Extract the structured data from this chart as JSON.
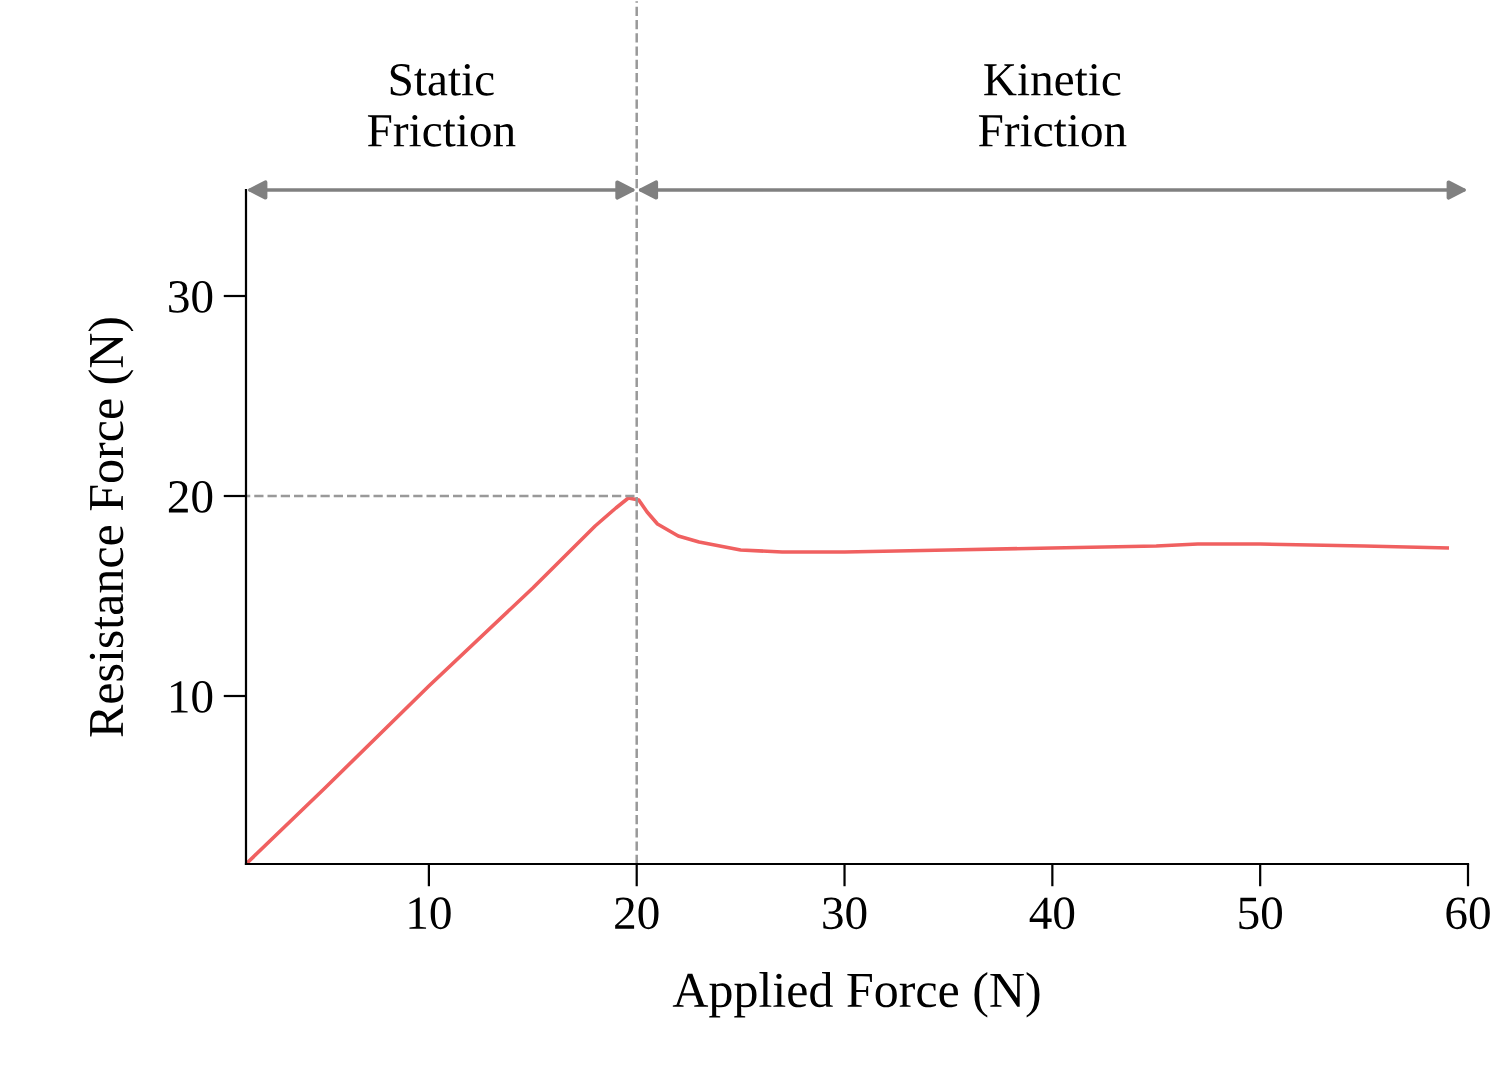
{
  "chart_data": {
    "type": "line",
    "xlabel": "Applied Force (N)",
    "ylabel": "Resistance Force (N)",
    "x": [
      1.2,
      5,
      10,
      15,
      18,
      19,
      19.6,
      20.1,
      20.5,
      21,
      22,
      23,
      25,
      27,
      30,
      35,
      40,
      45,
      47,
      50,
      55,
      59
    ],
    "series": [
      {
        "color": "#f06060",
        "values": [
          1.6,
          5.4,
          10.5,
          15.4,
          18.5,
          19.4,
          19.9,
          19.8,
          19.2,
          18.6,
          18.0,
          17.7,
          17.3,
          17.2,
          17.2,
          17.3,
          17.4,
          17.5,
          17.6,
          17.6,
          17.5,
          17.4
        ]
      }
    ],
    "xlim": [
      1.2,
      60
    ],
    "ylim": [
      1.6,
      35.3
    ],
    "xticks": [
      10,
      20,
      30,
      40,
      50,
      60
    ],
    "yticks": [
      10,
      20,
      30
    ],
    "ref_lines": [
      {
        "axis": "x",
        "value": 20,
        "color": "#999999",
        "line_style": "dashed"
      },
      {
        "axis": "y",
        "value": 20,
        "color": "#999999",
        "line_style": "dashed"
      }
    ],
    "annotations": [
      "Static\nFriction",
      "Kinetic\nFriction"
    ],
    "grid": false,
    "legend": false,
    "marker": "none",
    "line_style": "solid"
  }
}
